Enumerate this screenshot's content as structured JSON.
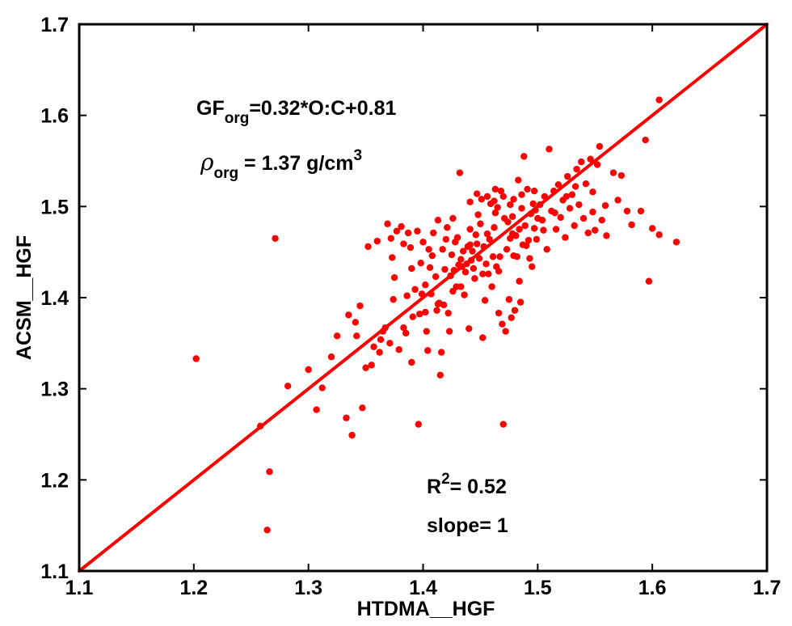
{
  "chart_data": {
    "type": "scatter",
    "title": "",
    "xlabel": "HTDMA__HGF",
    "ylabel": "ACSM__HGF",
    "xlim": [
      1.1,
      1.7
    ],
    "ylim": [
      1.1,
      1.7
    ],
    "xticks": [
      "1.1",
      "1.2",
      "1.3",
      "1.4",
      "1.5",
      "1.6",
      "1.7"
    ],
    "yticks": [
      "1.1",
      "1.2",
      "1.3",
      "1.4",
      "1.5",
      "1.6",
      "1.7"
    ],
    "grid": false,
    "colors": {
      "points": "#ff0000",
      "line": "#ff0000",
      "axes": "#000000"
    },
    "fit_line": {
      "x": [
        1.1,
        1.7
      ],
      "y": [
        1.1,
        1.7
      ]
    },
    "annotations": {
      "gf_main": "GF",
      "gf_sub": "org",
      "gf_rest": "=0.32*O:C+0.81",
      "rho_symbol": "ρ",
      "rho_sub": "org",
      "rho_rest": " = 1.37 g/cm",
      "rho_sup": "3",
      "r2_main": "R",
      "r2_sup": "2",
      "r2_rest": "= 0.52",
      "slope": "slope= 1"
    },
    "points": [
      [
        1.202,
        1.333
      ],
      [
        1.258,
        1.259
      ],
      [
        1.266,
        1.209
      ],
      [
        1.264,
        1.145
      ],
      [
        1.271,
        1.465
      ],
      [
        1.282,
        1.303
      ],
      [
        1.3,
        1.321
      ],
      [
        1.307,
        1.277
      ],
      [
        1.312,
        1.301
      ],
      [
        1.32,
        1.335
      ],
      [
        1.325,
        1.358
      ],
      [
        1.333,
        1.268
      ],
      [
        1.335,
        1.381
      ],
      [
        1.338,
        1.249
      ],
      [
        1.341,
        1.373
      ],
      [
        1.342,
        1.358
      ],
      [
        1.345,
        1.391
      ],
      [
        1.347,
        1.279
      ],
      [
        1.35,
        1.323
      ],
      [
        1.352,
        1.456
      ],
      [
        1.355,
        1.326
      ],
      [
        1.357,
        1.346
      ],
      [
        1.36,
        1.462
      ],
      [
        1.362,
        1.34
      ],
      [
        1.363,
        1.354
      ],
      [
        1.365,
        1.363
      ],
      [
        1.367,
        1.367
      ],
      [
        1.369,
        1.481
      ],
      [
        1.371,
        1.35
      ],
      [
        1.373,
        1.444
      ],
      [
        1.374,
        1.398
      ],
      [
        1.375,
        1.422
      ],
      [
        1.377,
        1.473
      ],
      [
        1.379,
        1.343
      ],
      [
        1.381,
        1.478
      ],
      [
        1.383,
        1.367
      ],
      [
        1.385,
        1.361
      ],
      [
        1.386,
        1.402
      ],
      [
        1.387,
        1.471
      ],
      [
        1.389,
        1.455
      ],
      [
        1.39,
        1.329
      ],
      [
        1.391,
        1.379
      ],
      [
        1.393,
        1.409
      ],
      [
        1.395,
        1.473
      ],
      [
        1.396,
        1.261
      ],
      [
        1.397,
        1.382
      ],
      [
        1.399,
        1.404
      ],
      [
        1.4,
        1.461
      ],
      [
        1.402,
        1.414
      ],
      [
        1.403,
        1.363
      ],
      [
        1.404,
        1.342
      ],
      [
        1.405,
        1.453
      ],
      [
        1.406,
        1.433
      ],
      [
        1.407,
        1.404
      ],
      [
        1.409,
        1.471
      ],
      [
        1.411,
        1.423
      ],
      [
        1.412,
        1.386
      ],
      [
        1.413,
        1.485
      ],
      [
        1.414,
        1.394
      ],
      [
        1.415,
        1.315
      ],
      [
        1.416,
        1.34
      ],
      [
        1.417,
        1.453
      ],
      [
        1.418,
        1.392
      ],
      [
        1.419,
        1.431
      ],
      [
        1.42,
        1.464
      ],
      [
        1.421,
        1.477
      ],
      [
        1.422,
        1.383
      ],
      [
        1.423,
        1.363
      ],
      [
        1.424,
        1.424
      ],
      [
        1.425,
        1.447
      ],
      [
        1.426,
        1.407
      ],
      [
        1.427,
        1.43
      ],
      [
        1.428,
        1.461
      ],
      [
        1.429,
        1.412
      ],
      [
        1.43,
        1.466
      ],
      [
        1.431,
        1.436
      ],
      [
        1.432,
        1.537
      ],
      [
        1.433,
        1.442
      ],
      [
        1.434,
        1.434
      ],
      [
        1.435,
        1.451
      ],
      [
        1.436,
        1.403
      ],
      [
        1.437,
        1.428
      ],
      [
        1.438,
        1.437
      ],
      [
        1.439,
        1.456
      ],
      [
        1.44,
        1.366
      ],
      [
        1.441,
        1.475
      ],
      [
        1.442,
        1.441
      ],
      [
        1.443,
        1.451
      ],
      [
        1.444,
        1.432
      ],
      [
        1.445,
        1.421
      ],
      [
        1.446,
        1.469
      ],
      [
        1.447,
        1.459
      ],
      [
        1.448,
        1.491
      ],
      [
        1.449,
        1.443
      ],
      [
        1.45,
        1.481
      ],
      [
        1.451,
        1.508
      ],
      [
        1.452,
        1.356
      ],
      [
        1.453,
        1.456
      ],
      [
        1.454,
        1.397
      ],
      [
        1.455,
        1.437
      ],
      [
        1.456,
        1.511
      ],
      [
        1.457,
        1.426
      ],
      [
        1.458,
        1.464
      ],
      [
        1.459,
        1.503
      ],
      [
        1.46,
        1.412
      ],
      [
        1.461,
        1.445
      ],
      [
        1.462,
        1.477
      ],
      [
        1.463,
        1.519
      ],
      [
        1.464,
        1.434
      ],
      [
        1.465,
        1.499
      ],
      [
        1.466,
        1.383
      ],
      [
        1.467,
        1.445
      ],
      [
        1.468,
        1.517
      ],
      [
        1.469,
        1.371
      ],
      [
        1.47,
        1.261
      ],
      [
        1.471,
        1.487
      ],
      [
        1.472,
        1.363
      ],
      [
        1.473,
        1.453
      ],
      [
        1.474,
        1.483
      ],
      [
        1.475,
        1.398
      ],
      [
        1.476,
        1.465
      ],
      [
        1.477,
        1.378
      ],
      [
        1.478,
        1.489
      ],
      [
        1.479,
        1.508
      ],
      [
        1.48,
        1.386
      ],
      [
        1.481,
        1.468
      ],
      [
        1.482,
        1.445
      ],
      [
        1.483,
        1.529
      ],
      [
        1.484,
        1.475
      ],
      [
        1.485,
        1.395
      ],
      [
        1.486,
        1.498
      ],
      [
        1.487,
        1.458
      ],
      [
        1.488,
        1.555
      ],
      [
        1.489,
        1.479
      ],
      [
        1.49,
        1.457
      ],
      [
        1.491,
        1.519
      ],
      [
        1.492,
        1.463
      ],
      [
        1.493,
        1.443
      ],
      [
        1.494,
        1.492
      ],
      [
        1.495,
        1.434
      ],
      [
        1.496,
        1.503
      ],
      [
        1.497,
        1.476
      ],
      [
        1.498,
        1.496
      ],
      [
        1.499,
        1.464
      ],
      [
        1.5,
        1.487
      ],
      [
        1.502,
        1.502
      ],
      [
        1.504,
        1.485
      ],
      [
        1.506,
        1.511
      ],
      [
        1.508,
        1.453
      ],
      [
        1.51,
        1.563
      ],
      [
        1.512,
        1.495
      ],
      [
        1.514,
        1.517
      ],
      [
        1.516,
        1.475
      ],
      [
        1.518,
        1.524
      ],
      [
        1.52,
        1.488
      ],
      [
        1.522,
        1.507
      ],
      [
        1.524,
        1.466
      ],
      [
        1.526,
        1.533
      ],
      [
        1.528,
        1.498
      ],
      [
        1.53,
        1.513
      ],
      [
        1.532,
        1.479
      ],
      [
        1.534,
        1.541
      ],
      [
        1.536,
        1.502
      ],
      [
        1.538,
        1.549
      ],
      [
        1.54,
        1.487
      ],
      [
        1.542,
        1.525
      ],
      [
        1.544,
        1.471
      ],
      [
        1.546,
        1.552
      ],
      [
        1.548,
        1.494
      ],
      [
        1.55,
        1.474
      ],
      [
        1.552,
        1.546
      ],
      [
        1.554,
        1.566
      ],
      [
        1.556,
        1.485
      ],
      [
        1.56,
        1.468
      ],
      [
        1.566,
        1.537
      ],
      [
        1.57,
        1.507
      ],
      [
        1.573,
        1.534
      ],
      [
        1.578,
        1.495
      ],
      [
        1.582,
        1.48
      ],
      [
        1.59,
        1.495
      ],
      [
        1.594,
        1.573
      ],
      [
        1.597,
        1.418
      ],
      [
        1.6,
        1.476
      ],
      [
        1.606,
        1.617
      ],
      [
        1.606,
        1.469
      ],
      [
        1.621,
        1.461
      ],
      [
        1.372,
        1.465
      ],
      [
        1.383,
        1.459
      ],
      [
        1.398,
        1.438
      ],
      [
        1.408,
        1.446
      ],
      [
        1.413,
        1.393
      ],
      [
        1.426,
        1.487
      ],
      [
        1.441,
        1.458
      ],
      [
        1.456,
        1.47
      ],
      [
        1.463,
        1.493
      ],
      [
        1.476,
        1.502
      ],
      [
        1.486,
        1.513
      ],
      [
        1.497,
        1.517
      ],
      [
        1.505,
        1.474
      ],
      [
        1.515,
        1.493
      ],
      [
        1.525,
        1.511
      ],
      [
        1.533,
        1.522
      ],
      [
        1.548,
        1.516
      ],
      [
        1.559,
        1.501
      ],
      [
        1.441,
        1.505
      ],
      [
        1.447,
        1.514
      ],
      [
        1.462,
        1.506
      ],
      [
        1.47,
        1.511
      ],
      [
        1.478,
        1.47
      ],
      [
        1.484,
        1.418
      ],
      [
        1.39,
        1.432
      ],
      [
        1.402,
        1.384
      ],
      [
        1.433,
        1.412
      ],
      [
        1.452,
        1.426
      ],
      [
        1.466,
        1.429
      ],
      [
        1.479,
        1.446
      ]
    ]
  }
}
